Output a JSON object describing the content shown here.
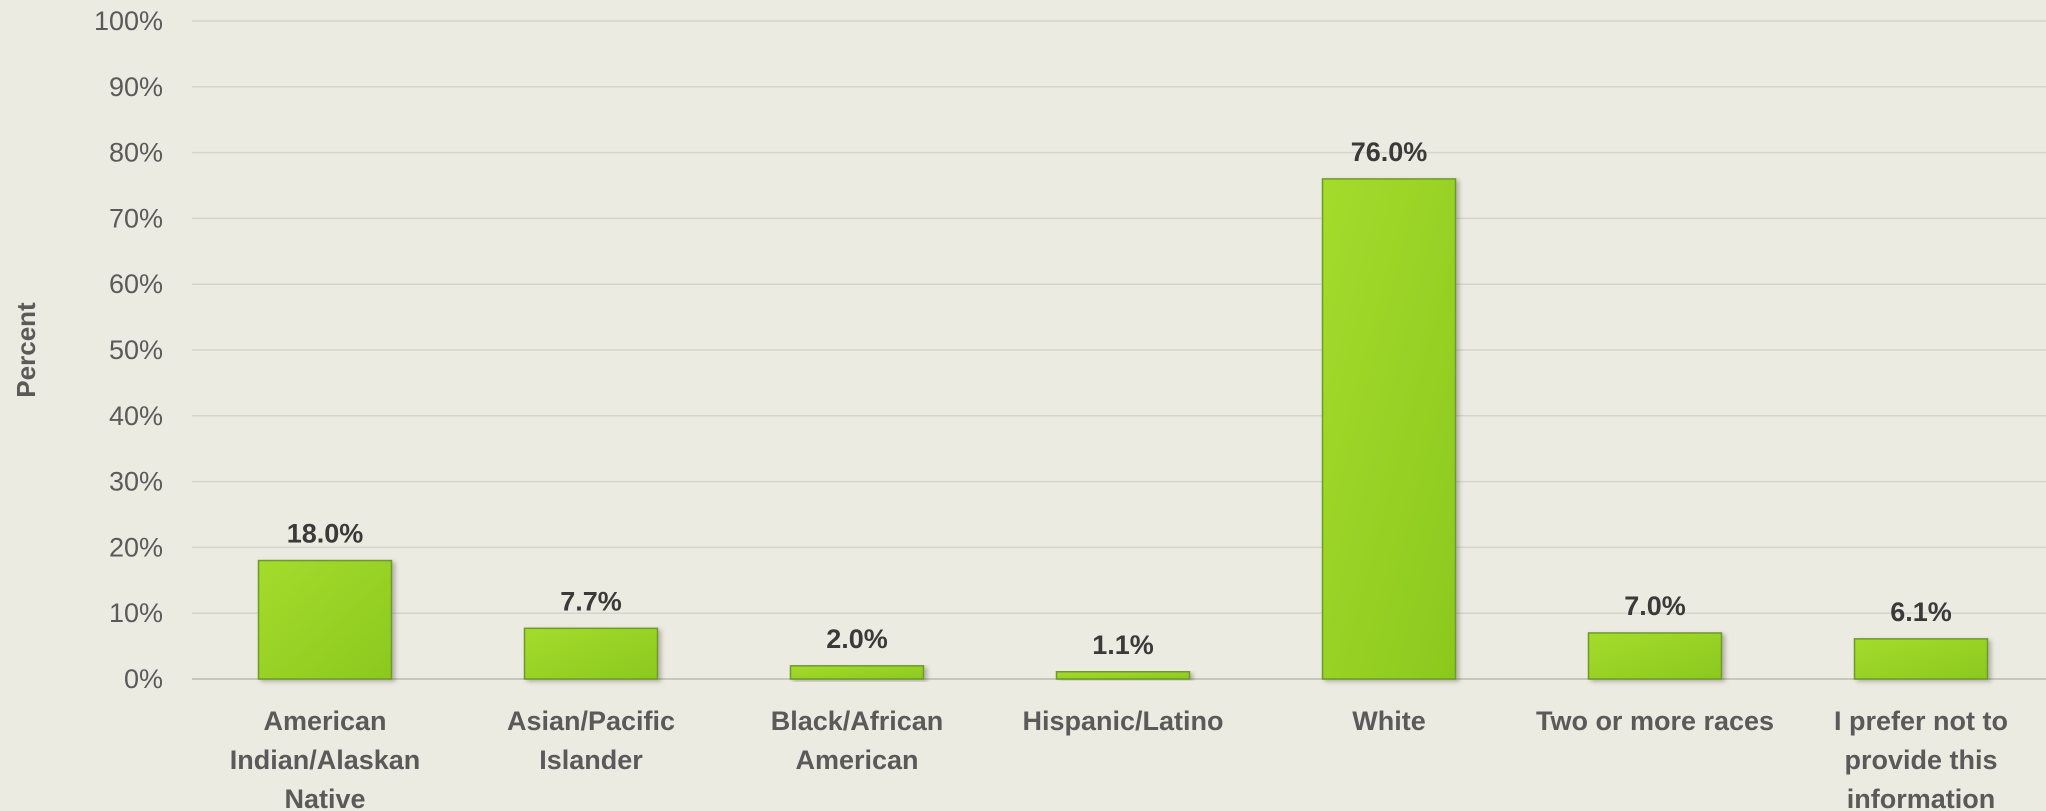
{
  "chart_data": {
    "type": "bar",
    "categories": [
      "American Indian/Alaskan Native",
      "Asian/Pacific Islander",
      "Black/African American",
      "Hispanic/Latino",
      "White",
      "Two or more races",
      "I prefer not to provide this information"
    ],
    "category_lines": [
      [
        "American",
        "Indian/Alaskan",
        "Native"
      ],
      [
        "Asian/Pacific",
        "Islander"
      ],
      [
        "Black/African",
        "American"
      ],
      [
        "Hispanic/Latino"
      ],
      [
        "White"
      ],
      [
        "Two or more races"
      ],
      [
        "I prefer not to",
        "provide this",
        "information"
      ]
    ],
    "values": [
      18.0,
      7.7,
      2.0,
      1.1,
      76.0,
      7.0,
      6.1
    ],
    "data_labels": [
      "18.0%",
      "7.7%",
      "2.0%",
      "1.1%",
      "76.0%",
      "7.0%",
      "6.1%"
    ],
    "title": "",
    "xlabel": "",
    "ylabel": "Percent",
    "ylim": [
      0,
      100
    ],
    "yticks": [
      "0%",
      "10%",
      "20%",
      "30%",
      "40%",
      "50%",
      "60%",
      "70%",
      "80%",
      "90%",
      "100%"
    ],
    "grid": true,
    "legend": "none",
    "colors": {
      "background": "#ecebe1",
      "bar_fill_top": "#9ed82a",
      "bar_fill_bottom": "#8cc81c",
      "bar_stroke": "#6e9a2a",
      "gridline": "#d6d5cb",
      "axis_line": "#c8c7bc"
    }
  }
}
